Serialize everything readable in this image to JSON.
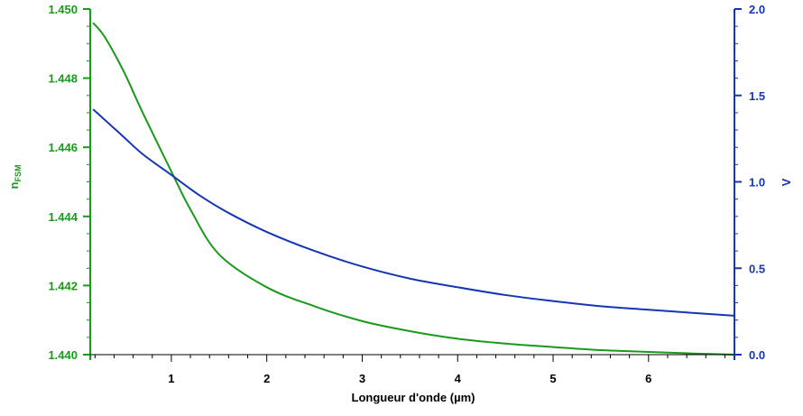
{
  "chart_data": {
    "type": "line",
    "xlabel": "Longueur d'onde (µm)",
    "x_ticks": [
      1,
      2,
      3,
      4,
      5,
      6
    ],
    "xlim": [
      0.15,
      6.9
    ],
    "left_axis": {
      "label_main": "n",
      "label_sub": "FSM",
      "ylim": [
        1.44,
        1.45
      ],
      "ticks": [
        "1.440",
        "1.442",
        "1.444",
        "1.446",
        "1.448",
        "1.450"
      ],
      "color": "#1a9a1a"
    },
    "right_axis": {
      "label": "V",
      "ylim": [
        0.0,
        2.0
      ],
      "ticks": [
        "0.0",
        "0.5",
        "1.0",
        "1.5",
        "2.0"
      ],
      "color": "#1436b4"
    },
    "series": [
      {
        "axis": "left",
        "color": "#1a9a1a",
        "x": [
          0.18,
          0.3,
          0.5,
          0.7,
          1.0,
          1.2,
          1.5,
          2.0,
          2.5,
          3.0,
          3.5,
          4.0,
          4.5,
          5.0,
          5.5,
          6.0,
          6.5,
          6.9
        ],
        "y": [
          1.4496,
          1.4492,
          1.4482,
          1.447,
          1.4453,
          1.4442,
          1.4429,
          1.44195,
          1.4414,
          1.44097,
          1.44068,
          1.44046,
          1.44032,
          1.44022,
          1.44013,
          1.44008,
          1.44003,
          1.44
        ]
      },
      {
        "axis": "right",
        "color": "#1436b4",
        "x": [
          0.18,
          0.3,
          0.5,
          0.7,
          1.0,
          1.3,
          1.6,
          2.0,
          2.5,
          3.0,
          3.5,
          4.0,
          4.5,
          5.0,
          5.5,
          6.0,
          6.5,
          6.9
        ],
        "y": [
          1.42,
          1.36,
          1.26,
          1.16,
          1.04,
          0.92,
          0.82,
          0.71,
          0.6,
          0.51,
          0.44,
          0.39,
          0.345,
          0.31,
          0.28,
          0.26,
          0.24,
          0.225
        ]
      }
    ]
  }
}
